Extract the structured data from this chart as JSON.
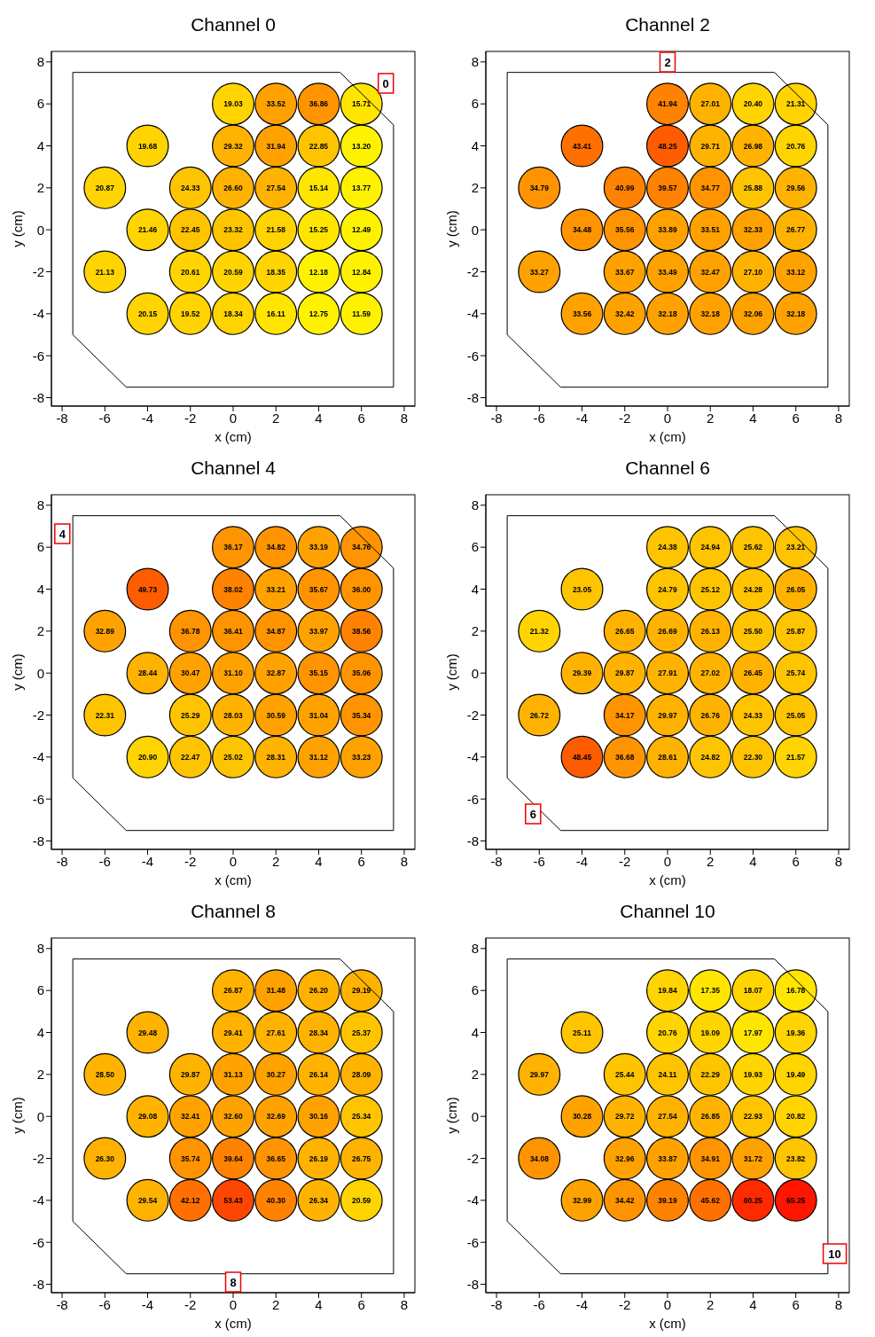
{
  "chart_data": [
    {
      "type": "scatter",
      "title": "Channel 0",
      "xlabel": "x (cm)",
      "ylabel": "y (cm)",
      "xlim": [
        -8.5,
        8.5
      ],
      "ylim": [
        -8.4,
        8.5
      ],
      "xticks": [
        -8,
        -6,
        -4,
        -2,
        0,
        2,
        4,
        6,
        8
      ],
      "yticks": [
        -8,
        -6,
        -4,
        -2,
        0,
        2,
        4,
        6,
        8
      ],
      "marker": "circle",
      "x": [
        0,
        2,
        4,
        6,
        -4,
        0,
        2,
        4,
        6,
        -6,
        -2,
        0,
        2,
        4,
        6,
        -4,
        -2,
        0,
        2,
        4,
        6,
        -6,
        -2,
        0,
        2,
        4,
        6,
        -4,
        -2,
        0,
        2,
        4,
        6
      ],
      "series": [
        {
          "values": [
            6,
            6,
            6,
            6,
            4,
            4,
            4,
            4,
            4,
            2,
            2,
            2,
            2,
            2,
            2,
            0,
            0,
            0,
            0,
            0,
            0,
            -2,
            -2,
            -2,
            -2,
            -2,
            -2,
            -4,
            -4,
            -4,
            -4,
            -4,
            -4
          ],
          "colors": [
            "#ffd400",
            "#ffa200",
            "#ff9400",
            "#ffe500",
            "#ffd400",
            "#ffb300",
            "#ffa200",
            "#ffc400",
            "#fff200",
            "#ffd400",
            "#ffc400",
            "#ffb300",
            "#ffb300",
            "#ffe500",
            "#fff200",
            "#ffd400",
            "#ffc400",
            "#ffc400",
            "#ffd400",
            "#ffe500",
            "#fff200",
            "#ffd400",
            "#ffd400",
            "#ffd400",
            "#ffd400",
            "#fff200",
            "#fff200",
            "#ffd400",
            "#ffd400",
            "#ffd400",
            "#ffe500",
            "#fff200",
            "#fff200"
          ]
        }
      ],
      "annotations": [
        "0",
        {
          "text": "19.03",
          "x": 0,
          "y": 6
        },
        {
          "text": "33.52",
          "x": 2,
          "y": 6
        },
        {
          "text": "36.86",
          "x": 4,
          "y": 6
        },
        {
          "text": "15.71",
          "x": 6,
          "y": 6
        },
        {
          "text": "19.68",
          "x": -4,
          "y": 4
        },
        {
          "text": "29.32",
          "x": 0,
          "y": 4
        },
        {
          "text": "31.94",
          "x": 2,
          "y": 4
        },
        {
          "text": "22.85",
          "x": 4,
          "y": 4
        },
        {
          "text": "13.20",
          "x": 6,
          "y": 4
        },
        {
          "text": "20.87",
          "x": -6,
          "y": 2
        },
        {
          "text": "24.33",
          "x": -2,
          "y": 2
        },
        {
          "text": "26.60",
          "x": 0,
          "y": 2
        },
        {
          "text": "27.54",
          "x": 2,
          "y": 2
        },
        {
          "text": "15.14",
          "x": 4,
          "y": 2
        },
        {
          "text": "13.77",
          "x": 6,
          "y": 2
        },
        {
          "text": "21.46",
          "x": -4,
          "y": 0
        },
        {
          "text": "22.45",
          "x": -2,
          "y": 0
        },
        {
          "text": "23.32",
          "x": 0,
          "y": 0
        },
        {
          "text": "21.58",
          "x": 2,
          "y": 0
        },
        {
          "text": "15.25",
          "x": 4,
          "y": 0
        },
        {
          "text": "12.49",
          "x": 6,
          "y": 0
        },
        {
          "text": "21.13",
          "x": -6,
          "y": -2
        },
        {
          "text": "20.61",
          "x": -2,
          "y": -2
        },
        {
          "text": "20.59",
          "x": 0,
          "y": -2
        },
        {
          "text": "18.35",
          "x": 2,
          "y": -2
        },
        {
          "text": "12.18",
          "x": 4,
          "y": -2
        },
        {
          "text": "12.84",
          "x": 6,
          "y": -2
        },
        {
          "text": "20.15",
          "x": -4,
          "y": -4
        },
        {
          "text": "19.52",
          "x": -2,
          "y": -4
        },
        {
          "text": "18.34",
          "x": 0,
          "y": -4
        },
        {
          "text": "16.11",
          "x": 2,
          "y": -4
        },
        {
          "text": "12.75",
          "x": 4,
          "y": -4
        },
        {
          "text": "11.59",
          "x": 6,
          "y": -4
        }
      ]
    },
    {
      "type": "scatter",
      "title": "Channel 2",
      "xlabel": "x (cm)",
      "ylabel": "y (cm)",
      "xlim": [
        -8.5,
        8.5
      ],
      "ylim": [
        -8.4,
        8.5
      ],
      "xticks": [
        -8,
        -6,
        -4,
        -2,
        0,
        2,
        4,
        6,
        8
      ],
      "yticks": [
        -8,
        -6,
        -4,
        -2,
        0,
        2,
        4,
        6,
        8
      ],
      "marker": "circle",
      "x": [
        0,
        2,
        4,
        6,
        -4,
        0,
        2,
        4,
        6,
        -6,
        -2,
        0,
        2,
        4,
        6,
        -4,
        -2,
        0,
        2,
        4,
        6,
        -6,
        -2,
        0,
        2,
        4,
        6,
        -4,
        -2,
        0,
        2,
        4,
        6
      ],
      "series": [
        {
          "values": [
            6,
            6,
            6,
            6,
            4,
            4,
            4,
            4,
            4,
            2,
            2,
            2,
            2,
            2,
            2,
            0,
            0,
            0,
            0,
            0,
            0,
            -2,
            -2,
            -2,
            -2,
            -2,
            -2,
            -4,
            -4,
            -4,
            -4,
            -4,
            -4
          ],
          "colors": [
            "#ff8200",
            "#ffb300",
            "#ffd400",
            "#ffd400",
            "#ff7000",
            "#ff5c00",
            "#ffb300",
            "#ffb300",
            "#ffd400",
            "#ff9400",
            "#ff8200",
            "#ff8200",
            "#ff9400",
            "#ffc400",
            "#ffb300",
            "#ff9400",
            "#ff9400",
            "#ffa200",
            "#ffa200",
            "#ffa200",
            "#ffb300",
            "#ffa200",
            "#ffa200",
            "#ffa200",
            "#ffa200",
            "#ffb300",
            "#ffa200",
            "#ffa200",
            "#ffa200",
            "#ffa200",
            "#ffa200",
            "#ffa200",
            "#ffa200"
          ]
        }
      ],
      "annotations": [
        "2",
        {
          "text": "41.94",
          "x": 0,
          "y": 6
        },
        {
          "text": "27.01",
          "x": 2,
          "y": 6
        },
        {
          "text": "20.40",
          "x": 4,
          "y": 6
        },
        {
          "text": "21.31",
          "x": 6,
          "y": 6
        },
        {
          "text": "43.41",
          "x": -4,
          "y": 4
        },
        {
          "text": "48.25",
          "x": 0,
          "y": 4
        },
        {
          "text": "29.71",
          "x": 2,
          "y": 4
        },
        {
          "text": "26.98",
          "x": 4,
          "y": 4
        },
        {
          "text": "20.76",
          "x": 6,
          "y": 4
        },
        {
          "text": "34.79",
          "x": -6,
          "y": 2
        },
        {
          "text": "40.99",
          "x": -2,
          "y": 2
        },
        {
          "text": "39.57",
          "x": 0,
          "y": 2
        },
        {
          "text": "34.77",
          "x": 2,
          "y": 2
        },
        {
          "text": "25.88",
          "x": 4,
          "y": 2
        },
        {
          "text": "29.56",
          "x": 6,
          "y": 2
        },
        {
          "text": "34.48",
          "x": -4,
          "y": 0
        },
        {
          "text": "35.56",
          "x": -2,
          "y": 0
        },
        {
          "text": "33.89",
          "x": 0,
          "y": 0
        },
        {
          "text": "33.51",
          "x": 2,
          "y": 0
        },
        {
          "text": "32.33",
          "x": 4,
          "y": 0
        },
        {
          "text": "26.77",
          "x": 6,
          "y": 0
        },
        {
          "text": "33.27",
          "x": -6,
          "y": -2
        },
        {
          "text": "33.67",
          "x": -2,
          "y": -2
        },
        {
          "text": "33.49",
          "x": 0,
          "y": -2
        },
        {
          "text": "32.47",
          "x": 2,
          "y": -2
        },
        {
          "text": "27.10",
          "x": 4,
          "y": -2
        },
        {
          "text": "33.12",
          "x": 6,
          "y": -2
        },
        {
          "text": "33.56",
          "x": -4,
          "y": -4
        },
        {
          "text": "32.42",
          "x": -2,
          "y": -4
        },
        {
          "text": "32.18",
          "x": 0,
          "y": -4
        },
        {
          "text": "32.18",
          "x": 2,
          "y": -4
        },
        {
          "text": "32.06",
          "x": 4,
          "y": -4
        },
        {
          "text": "32.18",
          "x": 6,
          "y": -4
        }
      ]
    },
    {
      "type": "scatter",
      "title": "Channel 4",
      "xlabel": "x (cm)",
      "ylabel": "y (cm)",
      "xlim": [
        -8.5,
        8.5
      ],
      "ylim": [
        -8.4,
        8.5
      ],
      "xticks": [
        -8,
        -6,
        -4,
        -2,
        0,
        2,
        4,
        6,
        8
      ],
      "yticks": [
        -8,
        -6,
        -4,
        -2,
        0,
        2,
        4,
        6,
        8
      ],
      "marker": "circle",
      "x": [
        0,
        2,
        4,
        6,
        -4,
        0,
        2,
        4,
        6,
        -6,
        -2,
        0,
        2,
        4,
        6,
        -4,
        -2,
        0,
        2,
        4,
        6,
        -6,
        -2,
        0,
        2,
        4,
        6,
        -4,
        -2,
        0,
        2,
        4,
        6
      ],
      "series": [
        {
          "values": [
            6,
            6,
            6,
            6,
            4,
            4,
            4,
            4,
            4,
            2,
            2,
            2,
            2,
            2,
            2,
            0,
            0,
            0,
            0,
            0,
            0,
            -2,
            -2,
            -2,
            -2,
            -2,
            -2,
            -4,
            -4,
            -4,
            -4,
            -4,
            -4
          ],
          "colors": [
            "#ff9400",
            "#ff9400",
            "#ffa200",
            "#ff9400",
            "#ff5c00",
            "#ff8200",
            "#ffa200",
            "#ff9400",
            "#ff9400",
            "#ffa200",
            "#ff9400",
            "#ff9400",
            "#ff9400",
            "#ffa200",
            "#ff8200",
            "#ffb300",
            "#ffa200",
            "#ffa200",
            "#ffa200",
            "#ff9400",
            "#ff9400",
            "#ffc400",
            "#ffc400",
            "#ffb300",
            "#ffa200",
            "#ffa200",
            "#ff9400",
            "#ffd400",
            "#ffc400",
            "#ffc400",
            "#ffb300",
            "#ffa200",
            "#ffa200"
          ]
        }
      ],
      "annotations": [
        "4",
        {
          "text": "36.17",
          "x": 0,
          "y": 6
        },
        {
          "text": "34.82",
          "x": 2,
          "y": 6
        },
        {
          "text": "33.19",
          "x": 4,
          "y": 6
        },
        {
          "text": "34.76",
          "x": 6,
          "y": 6
        },
        {
          "text": "49.73",
          "x": -4,
          "y": 4
        },
        {
          "text": "38.02",
          "x": 0,
          "y": 4
        },
        {
          "text": "33.21",
          "x": 2,
          "y": 4
        },
        {
          "text": "35.67",
          "x": 4,
          "y": 4
        },
        {
          "text": "36.00",
          "x": 6,
          "y": 4
        },
        {
          "text": "32.89",
          "x": -6,
          "y": 2
        },
        {
          "text": "36.78",
          "x": -2,
          "y": 2
        },
        {
          "text": "36.41",
          "x": 0,
          "y": 2
        },
        {
          "text": "34.87",
          "x": 2,
          "y": 2
        },
        {
          "text": "33.97",
          "x": 4,
          "y": 2
        },
        {
          "text": "38.56",
          "x": 6,
          "y": 2
        },
        {
          "text": "28.44",
          "x": -4,
          "y": 0
        },
        {
          "text": "30.47",
          "x": -2,
          "y": 0
        },
        {
          "text": "31.10",
          "x": 0,
          "y": 0
        },
        {
          "text": "32.87",
          "x": 2,
          "y": 0
        },
        {
          "text": "35.15",
          "x": 4,
          "y": 0
        },
        {
          "text": "35.06",
          "x": 6,
          "y": 0
        },
        {
          "text": "22.31",
          "x": -6,
          "y": -2
        },
        {
          "text": "25.29",
          "x": -2,
          "y": -2
        },
        {
          "text": "28.03",
          "x": 0,
          "y": -2
        },
        {
          "text": "30.59",
          "x": 2,
          "y": -2
        },
        {
          "text": "31.04",
          "x": 4,
          "y": -2
        },
        {
          "text": "35.34",
          "x": 6,
          "y": -2
        },
        {
          "text": "20.90",
          "x": -4,
          "y": -4
        },
        {
          "text": "22.47",
          "x": -2,
          "y": -4
        },
        {
          "text": "25.02",
          "x": 0,
          "y": -4
        },
        {
          "text": "28.31",
          "x": 2,
          "y": -4
        },
        {
          "text": "31.12",
          "x": 4,
          "y": -4
        },
        {
          "text": "33.23",
          "x": 6,
          "y": -4
        }
      ]
    },
    {
      "type": "scatter",
      "title": "Channel 6",
      "xlabel": "x (cm)",
      "ylabel": "y (cm)",
      "xlim": [
        -8.5,
        8.5
      ],
      "ylim": [
        -8.4,
        8.5
      ],
      "xticks": [
        -8,
        -6,
        -4,
        -2,
        0,
        2,
        4,
        6,
        8
      ],
      "yticks": [
        -8,
        -6,
        -4,
        -2,
        0,
        2,
        4,
        6,
        8
      ],
      "marker": "circle",
      "x": [
        0,
        2,
        4,
        6,
        -4,
        0,
        2,
        4,
        6,
        -6,
        -2,
        0,
        2,
        4,
        6,
        -4,
        -2,
        0,
        2,
        4,
        6,
        -6,
        -2,
        0,
        2,
        4,
        6,
        -4,
        -2,
        0,
        2,
        4,
        6
      ],
      "series": [
        {
          "values": [
            6,
            6,
            6,
            6,
            4,
            4,
            4,
            4,
            4,
            2,
            2,
            2,
            2,
            2,
            2,
            0,
            0,
            0,
            0,
            0,
            0,
            -2,
            -2,
            -2,
            -2,
            -2,
            -2,
            -4,
            -4,
            -4,
            -4,
            -4,
            -4
          ],
          "colors": [
            "#ffc400",
            "#ffc400",
            "#ffc400",
            "#ffc400",
            "#ffc400",
            "#ffc400",
            "#ffc400",
            "#ffc400",
            "#ffb300",
            "#ffd400",
            "#ffb300",
            "#ffb300",
            "#ffb300",
            "#ffc400",
            "#ffc400",
            "#ffb300",
            "#ffb300",
            "#ffb300",
            "#ffb300",
            "#ffb300",
            "#ffc400",
            "#ffb300",
            "#ff9400",
            "#ffb300",
            "#ffb300",
            "#ffc400",
            "#ffc400",
            "#ff5c00",
            "#ff9400",
            "#ffb300",
            "#ffc400",
            "#ffc400",
            "#ffd400"
          ]
        }
      ],
      "annotations": [
        "6",
        {
          "text": "24.38",
          "x": 0,
          "y": 6
        },
        {
          "text": "24.94",
          "x": 2,
          "y": 6
        },
        {
          "text": "25.62",
          "x": 4,
          "y": 6
        },
        {
          "text": "23.21",
          "x": 6,
          "y": 6
        },
        {
          "text": "23.05",
          "x": -4,
          "y": 4
        },
        {
          "text": "24.79",
          "x": 0,
          "y": 4
        },
        {
          "text": "25.12",
          "x": 2,
          "y": 4
        },
        {
          "text": "24.28",
          "x": 4,
          "y": 4
        },
        {
          "text": "26.05",
          "x": 6,
          "y": 4
        },
        {
          "text": "21.32",
          "x": -6,
          "y": 2
        },
        {
          "text": "26.65",
          "x": -2,
          "y": 2
        },
        {
          "text": "26.69",
          "x": 0,
          "y": 2
        },
        {
          "text": "26.13",
          "x": 2,
          "y": 2
        },
        {
          "text": "25.50",
          "x": 4,
          "y": 2
        },
        {
          "text": "25.87",
          "x": 6,
          "y": 2
        },
        {
          "text": "29.39",
          "x": -4,
          "y": 0
        },
        {
          "text": "29.87",
          "x": -2,
          "y": 0
        },
        {
          "text": "27.91",
          "x": 0,
          "y": 0
        },
        {
          "text": "27.02",
          "x": 2,
          "y": 0
        },
        {
          "text": "26.45",
          "x": 4,
          "y": 0
        },
        {
          "text": "25.74",
          "x": 6,
          "y": 0
        },
        {
          "text": "26.72",
          "x": -6,
          "y": -2
        },
        {
          "text": "34.17",
          "x": -2,
          "y": -2
        },
        {
          "text": "29.97",
          "x": 0,
          "y": -2
        },
        {
          "text": "26.76",
          "x": 2,
          "y": -2
        },
        {
          "text": "24.33",
          "x": 4,
          "y": -2
        },
        {
          "text": "25.05",
          "x": 6,
          "y": -2
        },
        {
          "text": "48.45",
          "x": -4,
          "y": -4
        },
        {
          "text": "36.68",
          "x": -2,
          "y": -4
        },
        {
          "text": "28.61",
          "x": 0,
          "y": -4
        },
        {
          "text": "24.82",
          "x": 2,
          "y": -4
        },
        {
          "text": "22.30",
          "x": 4,
          "y": -4
        },
        {
          "text": "21.57",
          "x": 6,
          "y": -4
        }
      ]
    },
    {
      "type": "scatter",
      "title": "Channel 8",
      "xlabel": "x (cm)",
      "ylabel": "y (cm)",
      "xlim": [
        -8.5,
        8.5
      ],
      "ylim": [
        -8.4,
        8.5
      ],
      "xticks": [
        -8,
        -6,
        -4,
        -2,
        0,
        2,
        4,
        6,
        8
      ],
      "yticks": [
        -8,
        -6,
        -4,
        -2,
        0,
        2,
        4,
        6,
        8
      ],
      "marker": "circle",
      "x": [
        0,
        2,
        4,
        6,
        -4,
        0,
        2,
        4,
        6,
        -6,
        -2,
        0,
        2,
        4,
        6,
        -4,
        -2,
        0,
        2,
        4,
        6,
        -6,
        -2,
        0,
        2,
        4,
        6,
        -4,
        -2,
        0,
        2,
        4,
        6
      ],
      "series": [
        {
          "values": [
            6,
            6,
            6,
            6,
            4,
            4,
            4,
            4,
            4,
            2,
            2,
            2,
            2,
            2,
            2,
            0,
            0,
            0,
            0,
            0,
            0,
            -2,
            -2,
            -2,
            -2,
            -2,
            -2,
            -4,
            -4,
            -4,
            -4,
            -4,
            -4
          ],
          "colors": [
            "#ffb300",
            "#ffa200",
            "#ffb300",
            "#ffb300",
            "#ffb300",
            "#ffb300",
            "#ffb300",
            "#ffb300",
            "#ffc400",
            "#ffb300",
            "#ffb300",
            "#ffa200",
            "#ffa200",
            "#ffb300",
            "#ffb300",
            "#ffb300",
            "#ffa200",
            "#ffa200",
            "#ffa200",
            "#ffa200",
            "#ffc400",
            "#ffb300",
            "#ff9400",
            "#ff8200",
            "#ff9400",
            "#ffb300",
            "#ffb300",
            "#ffb300",
            "#ff7000",
            "#ff4600",
            "#ff8200",
            "#ffb300",
            "#ffd400"
          ]
        }
      ],
      "annotations": [
        "8",
        {
          "text": "26.87",
          "x": 0,
          "y": 6
        },
        {
          "text": "31.48",
          "x": 2,
          "y": 6
        },
        {
          "text": "26.20",
          "x": 4,
          "y": 6
        },
        {
          "text": "29.19",
          "x": 6,
          "y": 6
        },
        {
          "text": "29.48",
          "x": -4,
          "y": 4
        },
        {
          "text": "29.41",
          "x": 0,
          "y": 4
        },
        {
          "text": "27.61",
          "x": 2,
          "y": 4
        },
        {
          "text": "28.34",
          "x": 4,
          "y": 4
        },
        {
          "text": "25.37",
          "x": 6,
          "y": 4
        },
        {
          "text": "28.50",
          "x": -6,
          "y": 2
        },
        {
          "text": "29.87",
          "x": -2,
          "y": 2
        },
        {
          "text": "31.13",
          "x": 0,
          "y": 2
        },
        {
          "text": "30.27",
          "x": 2,
          "y": 2
        },
        {
          "text": "26.14",
          "x": 4,
          "y": 2
        },
        {
          "text": "28.09",
          "x": 6,
          "y": 2
        },
        {
          "text": "29.08",
          "x": -4,
          "y": 0
        },
        {
          "text": "32.41",
          "x": -2,
          "y": 0
        },
        {
          "text": "32.60",
          "x": 0,
          "y": 0
        },
        {
          "text": "32.69",
          "x": 2,
          "y": 0
        },
        {
          "text": "30.16",
          "x": 4,
          "y": 0
        },
        {
          "text": "25.34",
          "x": 6,
          "y": 0
        },
        {
          "text": "26.30",
          "x": -6,
          "y": -2
        },
        {
          "text": "35.74",
          "x": -2,
          "y": -2
        },
        {
          "text": "39.64",
          "x": 0,
          "y": -2
        },
        {
          "text": "36.65",
          "x": 2,
          "y": -2
        },
        {
          "text": "26.19",
          "x": 4,
          "y": -2
        },
        {
          "text": "26.75",
          "x": 6,
          "y": -2
        },
        {
          "text": "29.54",
          "x": -4,
          "y": -4
        },
        {
          "text": "42.12",
          "x": -2,
          "y": -4
        },
        {
          "text": "53.43",
          "x": 0,
          "y": -4
        },
        {
          "text": "40.30",
          "x": 2,
          "y": -4
        },
        {
          "text": "26.34",
          "x": 4,
          "y": -4
        },
        {
          "text": "20.59",
          "x": 6,
          "y": -4
        }
      ]
    },
    {
      "type": "scatter",
      "title": "Channel 10",
      "xlabel": "x (cm)",
      "ylabel": "y (cm)",
      "xlim": [
        -8.5,
        8.5
      ],
      "ylim": [
        -8.4,
        8.5
      ],
      "xticks": [
        -8,
        -6,
        -4,
        -2,
        0,
        2,
        4,
        6,
        8
      ],
      "yticks": [
        -8,
        -6,
        -4,
        -2,
        0,
        2,
        4,
        6,
        8
      ],
      "marker": "circle",
      "x": [
        0,
        2,
        4,
        6,
        -4,
        0,
        2,
        4,
        6,
        -6,
        -2,
        0,
        2,
        4,
        6,
        -4,
        -2,
        0,
        2,
        4,
        6,
        -6,
        -2,
        0,
        2,
        4,
        6,
        -4,
        -2,
        0,
        2,
        4,
        6
      ],
      "series": [
        {
          "values": [
            6,
            6,
            6,
            6,
            4,
            4,
            4,
            4,
            4,
            2,
            2,
            2,
            2,
            2,
            2,
            0,
            0,
            0,
            0,
            0,
            0,
            -2,
            -2,
            -2,
            -2,
            -2,
            -2,
            -4,
            -4,
            -4,
            -4,
            -4,
            -4
          ],
          "colors": [
            "#ffd400",
            "#ffe500",
            "#ffd400",
            "#ffe500",
            "#ffc400",
            "#ffd400",
            "#ffd400",
            "#ffe500",
            "#ffd400",
            "#ffb300",
            "#ffc400",
            "#ffc400",
            "#ffc400",
            "#ffd400",
            "#ffd400",
            "#ffa200",
            "#ffb300",
            "#ffb300",
            "#ffb300",
            "#ffc400",
            "#ffd400",
            "#ff9400",
            "#ffa200",
            "#ffa200",
            "#ff9400",
            "#ffa200",
            "#ffc400",
            "#ffa200",
            "#ff9400",
            "#ff8200",
            "#ff7000",
            "#ff2a00",
            "#ff1500"
          ]
        }
      ],
      "annotations": [
        "10",
        {
          "text": "19.84",
          "x": 0,
          "y": 6
        },
        {
          "text": "17.35",
          "x": 2,
          "y": 6
        },
        {
          "text": "18.07",
          "x": 4,
          "y": 6
        },
        {
          "text": "16.78",
          "x": 6,
          "y": 6
        },
        {
          "text": "25.11",
          "x": -4,
          "y": 4
        },
        {
          "text": "20.76",
          "x": 0,
          "y": 4
        },
        {
          "text": "19.09",
          "x": 2,
          "y": 4
        },
        {
          "text": "17.97",
          "x": 4,
          "y": 4
        },
        {
          "text": "19.36",
          "x": 6,
          "y": 4
        },
        {
          "text": "29.97",
          "x": -6,
          "y": 2
        },
        {
          "text": "25.44",
          "x": -2,
          "y": 2
        },
        {
          "text": "24.11",
          "x": 0,
          "y": 2
        },
        {
          "text": "22.29",
          "x": 2,
          "y": 2
        },
        {
          "text": "19.93",
          "x": 4,
          "y": 2
        },
        {
          "text": "19.49",
          "x": 6,
          "y": 2
        },
        {
          "text": "30.28",
          "x": -4,
          "y": 0
        },
        {
          "text": "29.72",
          "x": -2,
          "y": 0
        },
        {
          "text": "27.54",
          "x": 0,
          "y": 0
        },
        {
          "text": "26.85",
          "x": 2,
          "y": 0
        },
        {
          "text": "22.93",
          "x": 4,
          "y": 0
        },
        {
          "text": "20.82",
          "x": 6,
          "y": 0
        },
        {
          "text": "34.08",
          "x": -6,
          "y": -2
        },
        {
          "text": "32.96",
          "x": -2,
          "y": -2
        },
        {
          "text": "33.87",
          "x": 0,
          "y": -2
        },
        {
          "text": "34.91",
          "x": 2,
          "y": -2
        },
        {
          "text": "31.72",
          "x": 4,
          "y": -2
        },
        {
          "text": "23.82",
          "x": 6,
          "y": -2
        },
        {
          "text": "32.99",
          "x": -4,
          "y": -4
        },
        {
          "text": "34.42",
          "x": -2,
          "y": -4
        },
        {
          "text": "39.19",
          "x": 0,
          "y": -4
        },
        {
          "text": "45.62",
          "x": 2,
          "y": -4
        },
        {
          "text": "60.25",
          "x": 4,
          "y": -4
        },
        {
          "text": "65.25",
          "x": 6,
          "y": -4
        }
      ]
    }
  ]
}
